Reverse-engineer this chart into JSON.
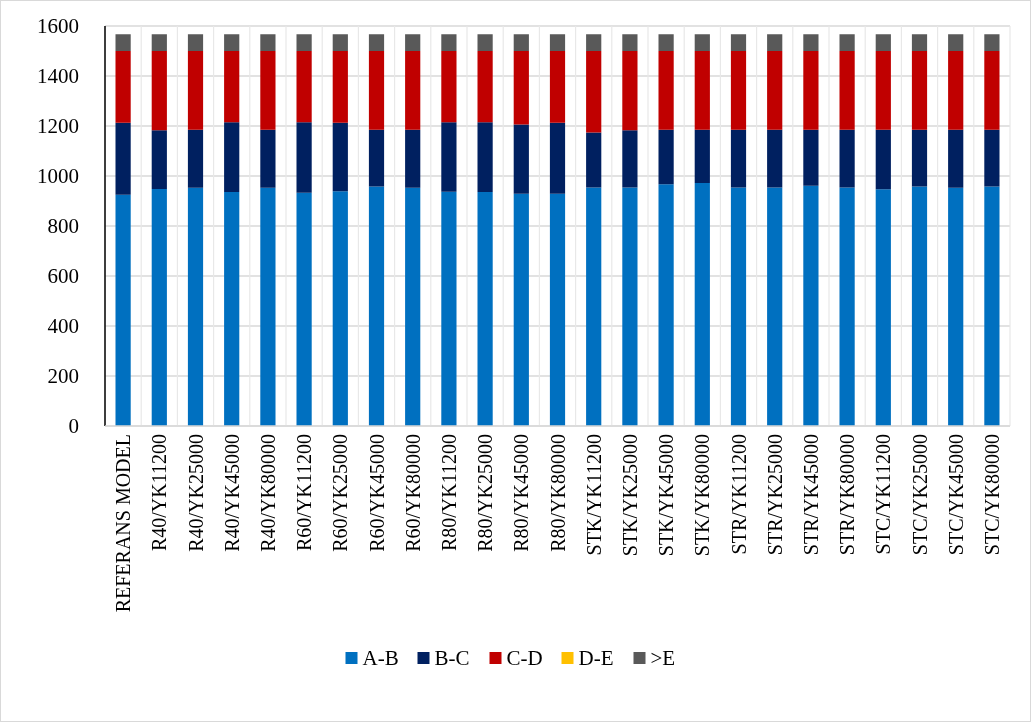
{
  "chart_data": {
    "type": "bar",
    "stacked": true,
    "categories": [
      "REFERANS MODEL",
      "R40/YK11200",
      "R40/YK25000",
      "R40/YK45000",
      "R40/YK80000",
      "R60/YK11200",
      "R60/YK25000",
      "R60/YK45000",
      "R60/YK80000",
      "R80/YK11200",
      "R80/YK25000",
      "R80/YK45000",
      "R80/YK80000",
      "STK/YK11200",
      "STK/YK25000",
      "STK/YK45000",
      "STK/YK80000",
      "STR/YK11200",
      "STR/YK25000",
      "STR/YK45000",
      "STR/YK80000",
      "STC/YK11200",
      "STC/YK25000",
      "STC/YK45000",
      "STC/YK80000"
    ],
    "series": [
      {
        "name": "A-B",
        "color": "#0070c0",
        "values": [
          925,
          948,
          953,
          936,
          953,
          933,
          939,
          958,
          953,
          937,
          936,
          929,
          929,
          954,
          954,
          967,
          972,
          954,
          954,
          961,
          954,
          947,
          958,
          953,
          958
        ]
      },
      {
        "name": "B-C",
        "color": "#002060",
        "values": [
          288,
          235,
          232,
          279,
          232,
          282,
          274,
          227,
          232,
          278,
          279,
          277,
          284,
          220,
          229,
          218,
          213,
          231,
          231,
          224,
          231,
          238,
          227,
          232,
          227
        ]
      },
      {
        "name": "C-D",
        "color": "#c00000",
        "values": [
          287,
          317,
          315,
          285,
          315,
          285,
          287,
          315,
          315,
          285,
          285,
          294,
          287,
          326,
          317,
          315,
          315,
          315,
          315,
          315,
          315,
          315,
          315,
          315,
          315
        ]
      },
      {
        "name": "D-E",
        "color": "#ffc000",
        "values": [
          0,
          0,
          0,
          0,
          0,
          0,
          0,
          0,
          0,
          0,
          0,
          0,
          0,
          0,
          0,
          0,
          0,
          0,
          0,
          0,
          0,
          0,
          0,
          0,
          0
        ]
      },
      {
        "name": ">E",
        "color": "#595959",
        "values": [
          67,
          67,
          67,
          67,
          67,
          67,
          67,
          67,
          67,
          67,
          67,
          67,
          67,
          67,
          67,
          67,
          67,
          67,
          67,
          67,
          67,
          67,
          67,
          67,
          67
        ]
      }
    ],
    "ylim": [
      0,
      1600
    ],
    "yticks": [
      0,
      200,
      400,
      600,
      800,
      1000,
      1200,
      1400,
      1600
    ],
    "grid": true,
    "legend": "bottom"
  }
}
